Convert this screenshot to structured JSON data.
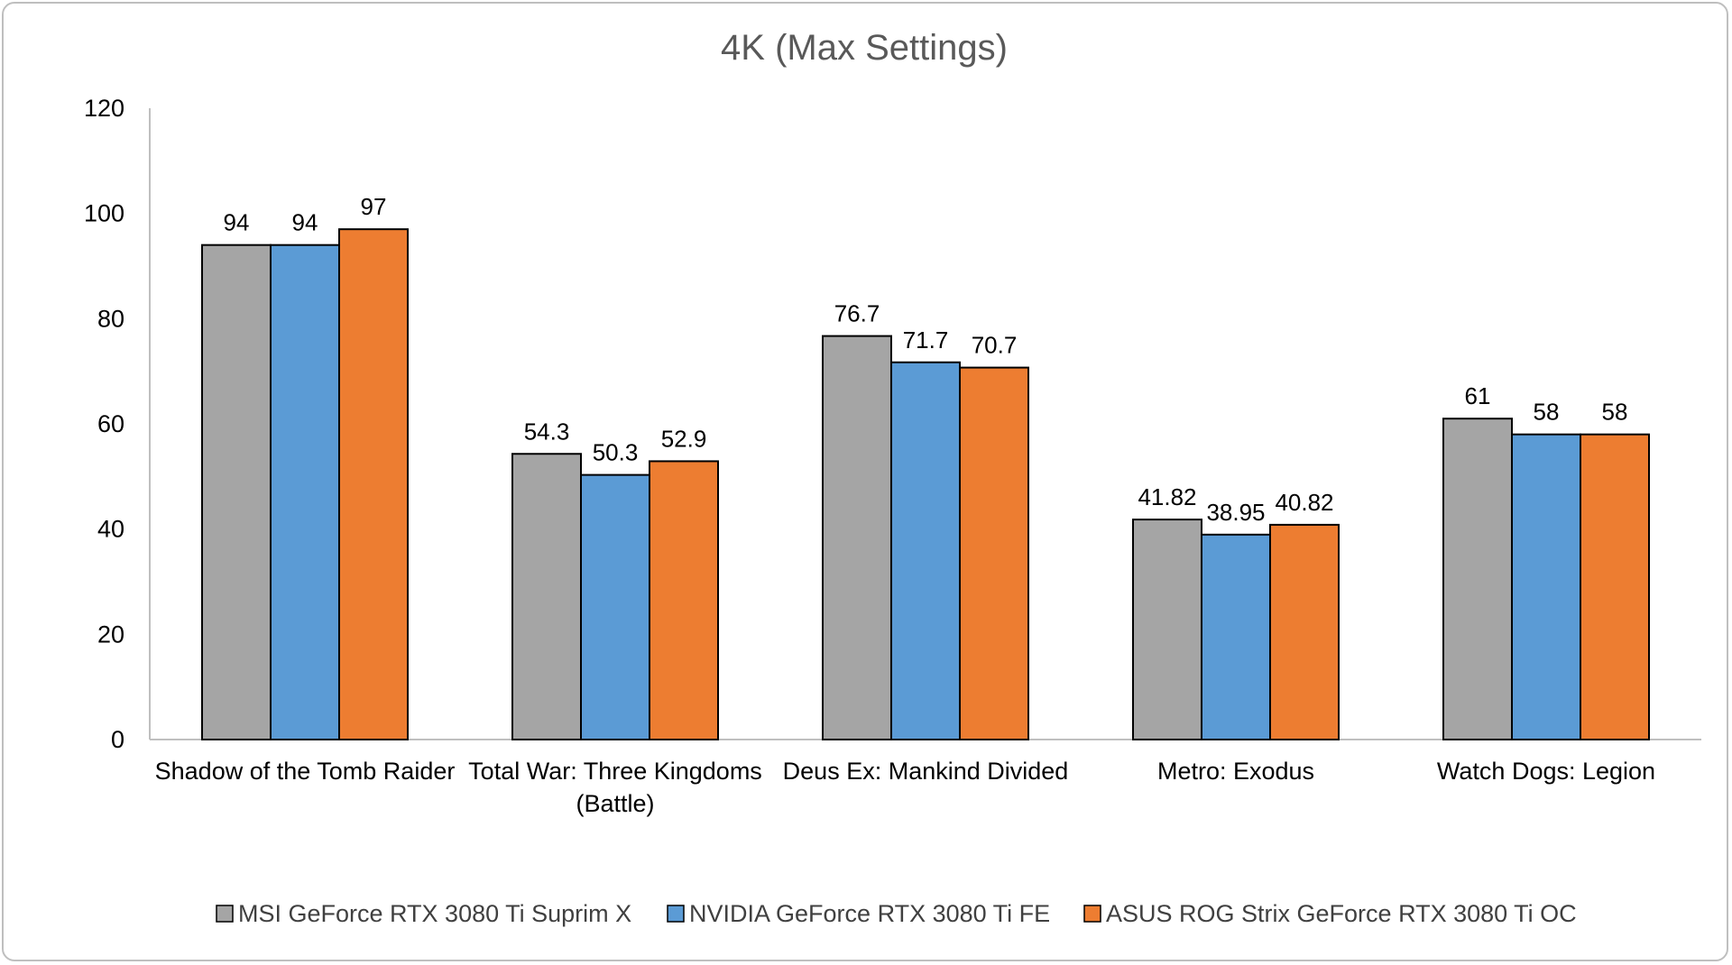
{
  "chart_data": {
    "type": "bar",
    "title": "4K (Max Settings)",
    "xlabel": "",
    "ylabel": "",
    "ylim": [
      0,
      120
    ],
    "yticks": [
      "0",
      "20",
      "40",
      "60",
      "80",
      "100",
      "120"
    ],
    "grid": false,
    "legend_position": "bottom",
    "categories": [
      [
        "Shadow of the Tomb Raider"
      ],
      [
        "Total War: Three Kingdoms",
        "(Battle)"
      ],
      [
        "Deus Ex: Mankind Divided"
      ],
      [
        "Metro: Exodus"
      ],
      [
        "Watch Dogs: Legion"
      ]
    ],
    "series": [
      {
        "name": "MSI GeForce RTX 3080 Ti Suprim X",
        "color": "#a5a5a5",
        "values": [
          94,
          54.3,
          76.7,
          41.82,
          61
        ],
        "labels": [
          "94",
          "54.3",
          "76.7",
          "41.82",
          "61"
        ]
      },
      {
        "name": "NVIDIA GeForce RTX 3080 Ti FE",
        "color": "#5b9bd5",
        "values": [
          94,
          50.3,
          71.7,
          38.95,
          58
        ],
        "labels": [
          "94",
          "50.3",
          "71.7",
          "38.95",
          "58"
        ]
      },
      {
        "name": "ASUS ROG Strix GeForce RTX 3080 Ti OC",
        "color": "#ed7d31",
        "values": [
          97,
          52.9,
          70.7,
          40.82,
          58
        ],
        "labels": [
          "97",
          "52.9",
          "70.7",
          "40.82",
          "58"
        ]
      }
    ]
  }
}
